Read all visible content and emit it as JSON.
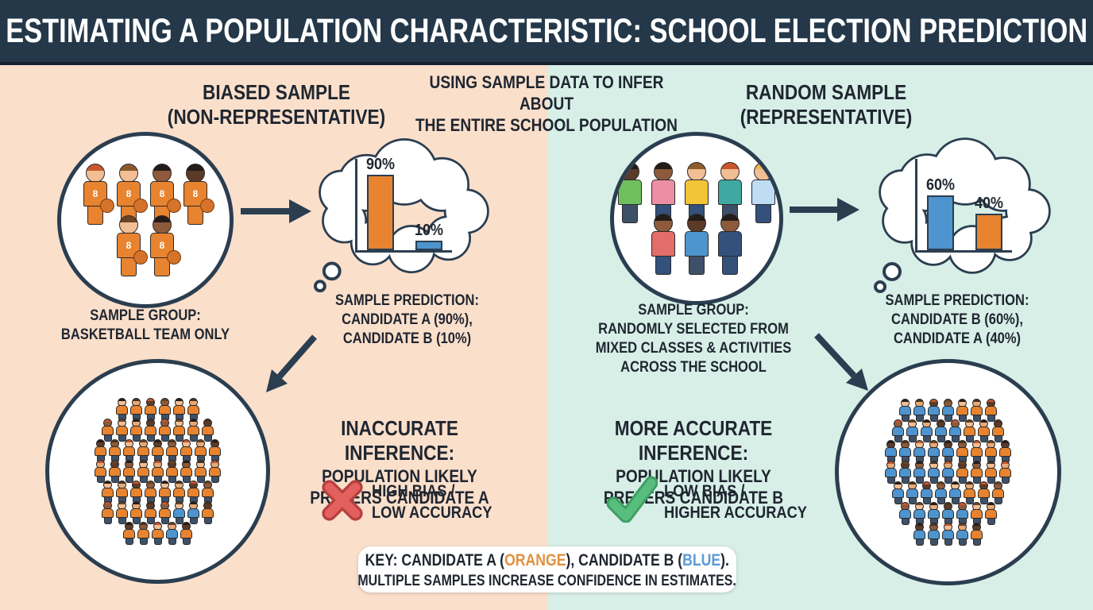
{
  "header": {
    "title": "ESTIMATING A POPULATION CHARACTERISTIC: SCHOOL ELECTION PREDICTION"
  },
  "center_heading": {
    "line1": "USING SAMPLE DATA TO INFER ABOUT",
    "line2": "THE ENTIRE SCHOOL POPULATION"
  },
  "colors": {
    "candidate_a_orange": "#E8832F",
    "candidate_b_blue": "#4E94CE",
    "ink": "#2B3E50",
    "left_panel_bg": "#FADFCB",
    "right_panel_bg": "#D7EFE7",
    "header_bg": "#24384A",
    "error_red": "#E4605E",
    "success_green": "#58BE7E"
  },
  "left": {
    "heading_line1": "BIASED SAMPLE",
    "heading_line2": "(NON-REPRESENTATIVE)",
    "sample_group_lines": [
      "SAMPLE GROUP:",
      "BASKETBALL TEAM ONLY"
    ],
    "prediction_lines": [
      "SAMPLE PREDICTION:",
      "CANDIDATE A (90%),",
      "CANDIDATE B (10%)"
    ],
    "inference_title": "INACCURATE INFERENCE:",
    "inference_lines": [
      "POPULATION LIKELY",
      "PREFERS CANDIDATE A"
    ],
    "badge_lines": [
      "HIGH BIAS /",
      "LOW ACCURACY"
    ],
    "sample_figures": {
      "shirt": "#E8832F",
      "rows": [
        [
          {
            "skin": "#F2BE94",
            "hair": "#C9572B"
          },
          {
            "skin": "#F2BE94",
            "hair": "#8A5A2B"
          },
          {
            "skin": "#8D5A3B",
            "hair": "#241C18"
          },
          {
            "skin": "#5C3A28",
            "hair": "#241C18"
          }
        ],
        [
          {
            "skin": "#F2BE94",
            "hair": "#6B4423"
          },
          {
            "skin": "#8D5A3B",
            "hair": "#241C18"
          }
        ]
      ]
    },
    "population_rows": [
      "oooooo",
      "oooooooo",
      "ooooooooo",
      "ooooooooo",
      "oooooooo",
      "ooooobbo",
      "ooobo"
    ]
  },
  "right": {
    "heading_line1": "RANDOM SAMPLE",
    "heading_line2": "(REPRESENTATIVE)",
    "sample_group_lines": [
      "SAMPLE GROUP:",
      "RANDOMLY SELECTED FROM",
      "MIXED CLASSES & ACTIVITIES",
      "ACROSS THE SCHOOL"
    ],
    "prediction_lines": [
      "SAMPLE PREDICTION:",
      "CANDIDATE B (60%),",
      "CANDIDATE A (40%)"
    ],
    "inference_title": "MORE ACCURATE INFERENCE:",
    "inference_lines": [
      "POPULATION LIKELY",
      "PREFERS CANDIDATE B"
    ],
    "badge_lines": [
      "LOW BIAS /",
      "HIGHER ACCURACY"
    ],
    "sample_figures": {
      "shirt": "#4E94CE",
      "rows": [
        [
          {
            "skin": "#5C3A28",
            "hair": "#241C18",
            "shirt": "#6FBF5E",
            "pants": "#3E5068"
          },
          {
            "skin": "#8D5A3B",
            "hair": "#241C18",
            "shirt": "#ED8FA4",
            "pants": "#33517A"
          },
          {
            "skin": "#F2BE94",
            "hair": "#8B5E2A",
            "shirt": "#F2C437",
            "pants": "#33517A"
          },
          {
            "skin": "#F2BE94",
            "hair": "#C9572B",
            "shirt": "#3FA8A0",
            "pants": "#3E5068"
          },
          {
            "skin": "#F2BE94",
            "hair": "#E8B84B",
            "shirt": "#BFDCF5",
            "pants": "#33517A"
          }
        ],
        [
          {
            "skin": "#8D5A3B",
            "hair": "#241C18",
            "shirt": "#E26D6A",
            "pants": "#33517A"
          },
          {
            "skin": "#5C3A28",
            "hair": "#241C18",
            "shirt": "#4E94CE",
            "pants": "#3E5068"
          },
          {
            "skin": "#8D5A3B",
            "hair": "#241C18",
            "shirt": "#33517A",
            "pants": "#33517A"
          }
        ]
      ]
    },
    "population_rows": [
      "bbbbooo",
      "bbbbbooo",
      "bbbbboooo",
      "bbbbboooo",
      "bbbbbooo",
      "bbbbboo",
      "bbbbo"
    ]
  },
  "key": {
    "line1_parts": [
      {
        "text": "KEY: CANDIDATE A ("
      },
      {
        "text": "ORANGE",
        "color": "#E0913F"
      },
      {
        "text": "), CANDIDATE B ("
      },
      {
        "text": "BLUE",
        "color": "#5B9BD5"
      },
      {
        "text": ")."
      }
    ],
    "line2": "MULTIPLE SAMPLES INCREASE CONFIDENCE IN ESTIMATES."
  },
  "chart_data": [
    {
      "type": "bar",
      "categories": [
        "Candidate A",
        "Candidate B"
      ],
      "values": [
        90,
        10
      ],
      "labels": [
        "90%",
        "10%"
      ],
      "colors": [
        "#E8832F",
        "#4E94CE"
      ],
      "ylim": [
        0,
        100
      ]
    },
    {
      "type": "bar",
      "categories": [
        "Candidate B",
        "Candidate A"
      ],
      "values": [
        60,
        40
      ],
      "labels": [
        "60%",
        "40%"
      ],
      "colors": [
        "#4E94CE",
        "#E8832F"
      ],
      "ylim": [
        0,
        100
      ]
    }
  ]
}
